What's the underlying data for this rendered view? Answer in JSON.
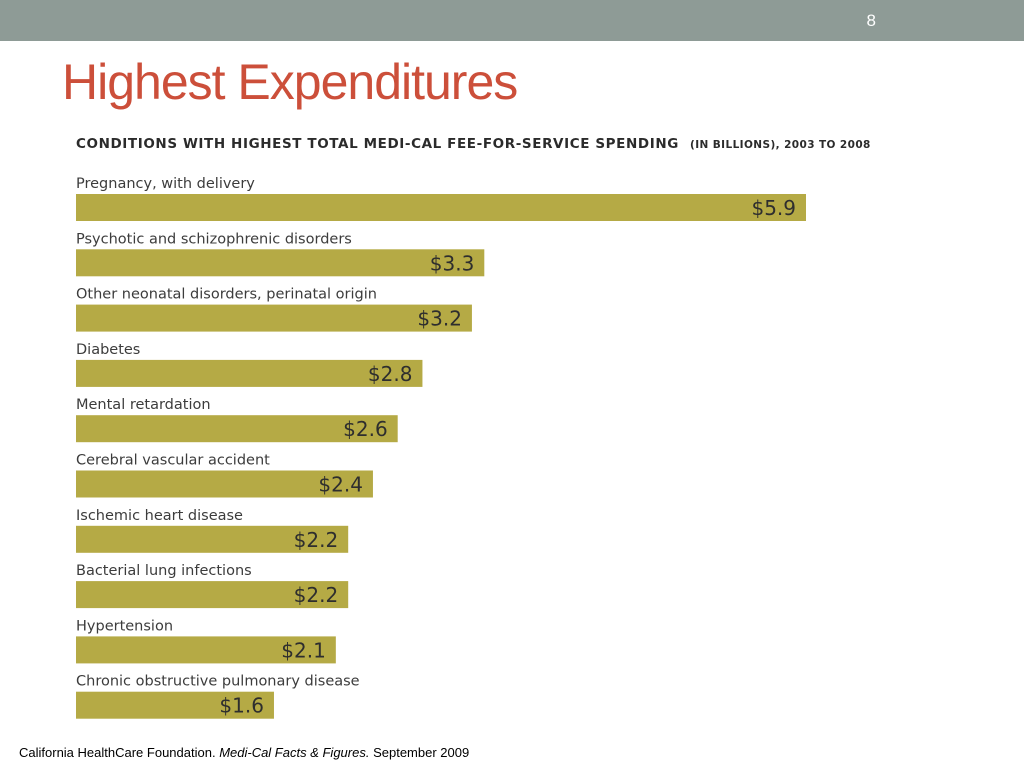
{
  "slide": {
    "number": "8",
    "title": "Highest Expenditures"
  },
  "colors": {
    "top_bar": "#8e9b96",
    "title": "#cc4f3a",
    "bar": "#b5aa45"
  },
  "footer": {
    "source": "California HealthCare Foundation.",
    "publication": "Medi-Cal Facts & Figures.",
    "date": "September 2009"
  },
  "chart_data": {
    "type": "bar",
    "orientation": "horizontal",
    "title_main": "CONDITIONS WITH HIGHEST TOTAL MEDI-CAL FEE-FOR-SERVICE SPENDING",
    "title_sub": "(IN BILLIONS), 2003 TO 2008",
    "categories": [
      "Pregnancy, with delivery",
      "Psychotic and schizophrenic disorders",
      "Other neonatal disorders, perinatal origin",
      "Diabetes",
      "Mental retardation",
      "Cerebral vascular accident",
      "Ischemic heart disease",
      "Bacterial lung infections",
      "Hypertension",
      "Chronic obstructive pulmonary disease"
    ],
    "values": [
      5.9,
      3.3,
      3.2,
      2.8,
      2.6,
      2.4,
      2.2,
      2.2,
      2.1,
      1.6
    ],
    "value_labels": [
      "$5.9",
      "$3.3",
      "$3.2",
      "$2.8",
      "$2.6",
      "$2.4",
      "$2.2",
      "$2.2",
      "$2.1",
      "$1.6"
    ],
    "xlim": [
      0,
      5.9
    ],
    "grid": false
  }
}
